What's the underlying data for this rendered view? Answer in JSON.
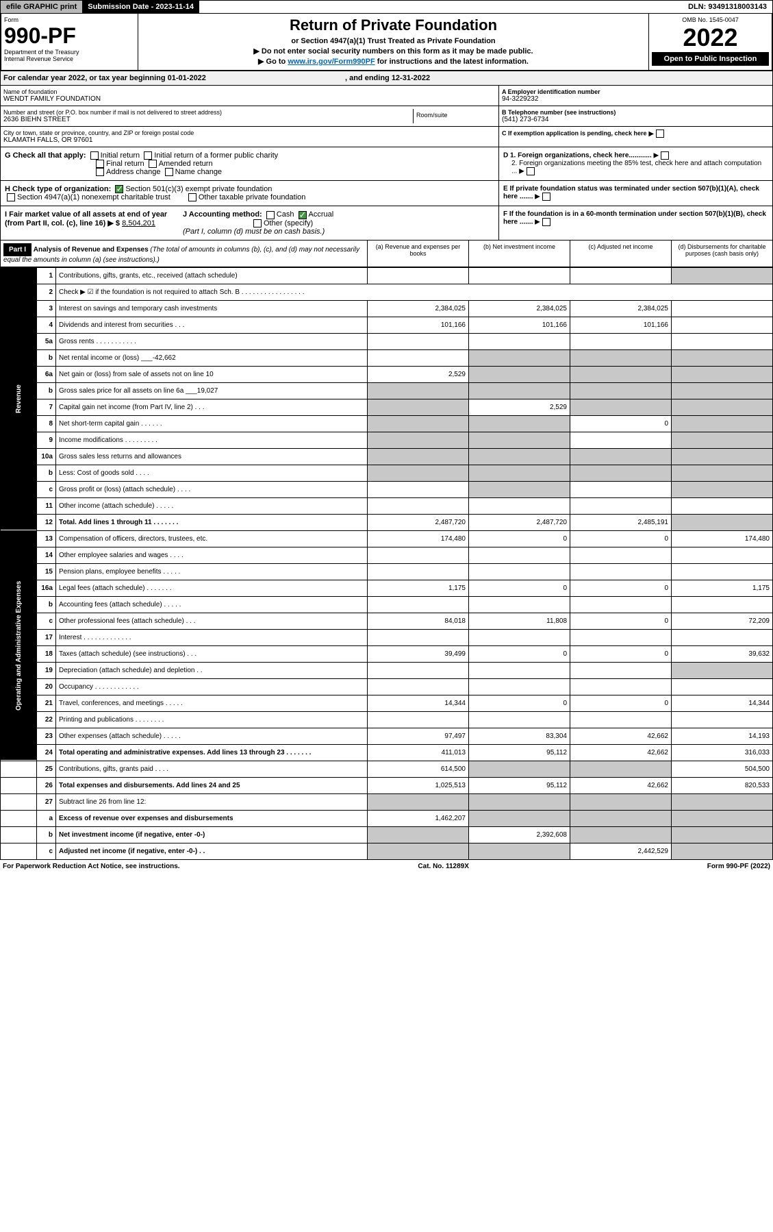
{
  "topbar": {
    "efile": "efile GRAPHIC print",
    "sub_date": "Submission Date - 2023-11-14",
    "dln": "DLN: 93491318003143"
  },
  "header": {
    "form_label": "Form",
    "form_num": "990-PF",
    "dept": "Department of the Treasury",
    "irs": "Internal Revenue Service",
    "title": "Return of Private Foundation",
    "subtitle": "or Section 4947(a)(1) Trust Treated as Private Foundation",
    "note1": "▶ Do not enter social security numbers on this form as it may be made public.",
    "note2_pre": "▶ Go to ",
    "note2_link": "www.irs.gov/Form990PF",
    "note2_post": " for instructions and the latest information.",
    "omb": "OMB No. 1545-0047",
    "year": "2022",
    "open_pub": "Open to Public Inspection"
  },
  "cal_year": "For calendar year 2022, or tax year beginning 01-01-2022",
  "cal_year_end": ", and ending 12-31-2022",
  "info": {
    "name_lbl": "Name of foundation",
    "name": "WENDT FAMILY FOUNDATION",
    "addr_lbl": "Number and street (or P.O. box number if mail is not delivered to street address)",
    "addr": "2636 BIEHN STREET",
    "room_lbl": "Room/suite",
    "city_lbl": "City or town, state or province, country, and ZIP or foreign postal code",
    "city": "KLAMATH FALLS, OR  97601",
    "ein_lbl": "A Employer identification number",
    "ein": "94-3229232",
    "tel_lbl": "B Telephone number (see instructions)",
    "tel": "(541) 273-6734",
    "c_lbl": "C If exemption application is pending, check here",
    "d1_lbl": "D 1. Foreign organizations, check here............",
    "d2_lbl": "2. Foreign organizations meeting the 85% test, check here and attach computation ...",
    "e_lbl": "E  If private foundation status was terminated under section 507(b)(1)(A), check here .......",
    "f_lbl": "F  If the foundation is in a 60-month termination under section 507(b)(1)(B), check here .......",
    "g_lbl": "G Check all that apply:",
    "g_opts": [
      "Initial return",
      "Initial return of a former public charity",
      "Final return",
      "Amended return",
      "Address change",
      "Name change"
    ],
    "h_lbl": "H Check type of organization:",
    "h_501c3": "Section 501(c)(3) exempt private foundation",
    "h_4947": "Section 4947(a)(1) nonexempt charitable trust",
    "h_other": "Other taxable private foundation",
    "i_lbl": "I Fair market value of all assets at end of year (from Part II, col. (c), line 16) ▶ $",
    "i_val": "8,504,201",
    "j_lbl": "J Accounting method:",
    "j_cash": "Cash",
    "j_accrual": "Accrual",
    "j_other": "Other (specify)",
    "j_note": "(Part I, column (d) must be on cash basis.)"
  },
  "part1": {
    "hdr": "Part I",
    "title": "Analysis of Revenue and Expenses",
    "title_note": "(The total of amounts in columns (b), (c), and (d) may not necessarily equal the amounts in column (a) (see instructions).)",
    "col_a": "(a) Revenue and expenses per books",
    "col_b": "(b) Net investment income",
    "col_c": "(c) Adjusted net income",
    "col_d": "(d) Disbursements for charitable purposes (cash basis only)"
  },
  "side_labels": {
    "rev": "Revenue",
    "exp": "Operating and Administrative Expenses"
  },
  "rows": [
    {
      "ln": "1",
      "desc": "Contributions, gifts, grants, etc., received (attach schedule)",
      "a": "",
      "b": "",
      "c": "",
      "d": "",
      "d_gray": true
    },
    {
      "ln": "2",
      "desc": "Check ▶ ☑ if the foundation is not required to attach Sch. B  . . . . . . . . . . . . . . . . .",
      "a": "",
      "b": "",
      "c": "",
      "d": "",
      "merge": true
    },
    {
      "ln": "3",
      "desc": "Interest on savings and temporary cash investments",
      "a": "2,384,025",
      "b": "2,384,025",
      "c": "2,384,025",
      "d": ""
    },
    {
      "ln": "4",
      "desc": "Dividends and interest from securities  .  .  .",
      "a": "101,166",
      "b": "101,166",
      "c": "101,166",
      "d": ""
    },
    {
      "ln": "5a",
      "desc": "Gross rents  .  .  .  .  .  .  .  .  .  .  .",
      "a": "",
      "b": "",
      "c": "",
      "d": ""
    },
    {
      "ln": "b",
      "desc": "Net rental income or (loss)",
      "inline": "-42,662",
      "a": "",
      "b": "",
      "c": "",
      "d": "",
      "b_gray": true,
      "c_gray": true,
      "d_gray": true
    },
    {
      "ln": "6a",
      "desc": "Net gain or (loss) from sale of assets not on line 10",
      "a": "2,529",
      "b": "",
      "c": "",
      "d": "",
      "b_gray": true,
      "c_gray": true,
      "d_gray": true
    },
    {
      "ln": "b",
      "desc": "Gross sales price for all assets on line 6a",
      "inline": "19,027",
      "a": "",
      "b": "",
      "c": "",
      "d": "",
      "a_gray": true,
      "b_gray": true,
      "c_gray": true,
      "d_gray": true
    },
    {
      "ln": "7",
      "desc": "Capital gain net income (from Part IV, line 2)  .  .  .",
      "a": "",
      "b": "2,529",
      "c": "",
      "d": "",
      "a_gray": true,
      "c_gray": true,
      "d_gray": true
    },
    {
      "ln": "8",
      "desc": "Net short-term capital gain  .  .  .  .  .  .",
      "a": "",
      "b": "",
      "c": "0",
      "d": "",
      "a_gray": true,
      "b_gray": true,
      "d_gray": true
    },
    {
      "ln": "9",
      "desc": "Income modifications  .  .  .  .  .  .  .  .  .",
      "a": "",
      "b": "",
      "c": "",
      "d": "",
      "a_gray": true,
      "b_gray": true,
      "d_gray": true
    },
    {
      "ln": "10a",
      "desc": "Gross sales less returns and allowances",
      "inline_box": true,
      "a": "",
      "b": "",
      "c": "",
      "d": "",
      "a_gray": true,
      "b_gray": true,
      "c_gray": true,
      "d_gray": true
    },
    {
      "ln": "b",
      "desc": "Less: Cost of goods sold  .  .  .  .",
      "inline_box": true,
      "a": "",
      "b": "",
      "c": "",
      "d": "",
      "a_gray": true,
      "b_gray": true,
      "c_gray": true,
      "d_gray": true
    },
    {
      "ln": "c",
      "desc": "Gross profit or (loss) (attach schedule)  .  .  .  .",
      "a": "",
      "b": "",
      "c": "",
      "d": "",
      "b_gray": true,
      "d_gray": true
    },
    {
      "ln": "11",
      "desc": "Other income (attach schedule)  .  .  .  .  .",
      "a": "",
      "b": "",
      "c": "",
      "d": ""
    },
    {
      "ln": "12",
      "desc": "Total. Add lines 1 through 11  .  .  .  .  .  .  .",
      "bold": true,
      "a": "2,487,720",
      "b": "2,487,720",
      "c": "2,485,191",
      "d": "",
      "d_gray": true
    },
    {
      "ln": "13",
      "desc": "Compensation of officers, directors, trustees, etc.",
      "a": "174,480",
      "b": "0",
      "c": "0",
      "d": "174,480"
    },
    {
      "ln": "14",
      "desc": "Other employee salaries and wages  .  .  .  .",
      "a": "",
      "b": "",
      "c": "",
      "d": ""
    },
    {
      "ln": "15",
      "desc": "Pension plans, employee benefits  .  .  .  .  .",
      "a": "",
      "b": "",
      "c": "",
      "d": ""
    },
    {
      "ln": "16a",
      "desc": "Legal fees (attach schedule)  .  .  .  .  .  .  .",
      "a": "1,175",
      "b": "0",
      "c": "0",
      "d": "1,175"
    },
    {
      "ln": "b",
      "desc": "Accounting fees (attach schedule)  .  .  .  .  .",
      "a": "",
      "b": "",
      "c": "",
      "d": ""
    },
    {
      "ln": "c",
      "desc": "Other professional fees (attach schedule)  .  .  .",
      "a": "84,018",
      "b": "11,808",
      "c": "0",
      "d": "72,209"
    },
    {
      "ln": "17",
      "desc": "Interest  .  .  .  .  .  .  .  .  .  .  .  .  .",
      "a": "",
      "b": "",
      "c": "",
      "d": ""
    },
    {
      "ln": "18",
      "desc": "Taxes (attach schedule) (see instructions)  .  .  .",
      "a": "39,499",
      "b": "0",
      "c": "0",
      "d": "39,632"
    },
    {
      "ln": "19",
      "desc": "Depreciation (attach schedule) and depletion  .  .",
      "a": "",
      "b": "",
      "c": "",
      "d": "",
      "d_gray": true
    },
    {
      "ln": "20",
      "desc": "Occupancy  .  .  .  .  .  .  .  .  .  .  .  .",
      "a": "",
      "b": "",
      "c": "",
      "d": ""
    },
    {
      "ln": "21",
      "desc": "Travel, conferences, and meetings  .  .  .  .  .",
      "a": "14,344",
      "b": "0",
      "c": "0",
      "d": "14,344"
    },
    {
      "ln": "22",
      "desc": "Printing and publications  .  .  .  .  .  .  .  .",
      "a": "",
      "b": "",
      "c": "",
      "d": ""
    },
    {
      "ln": "23",
      "desc": "Other expenses (attach schedule)  .  .  .  .  .",
      "a": "97,497",
      "b": "83,304",
      "c": "42,662",
      "d": "14,193"
    },
    {
      "ln": "24",
      "desc": "Total operating and administrative expenses. Add lines 13 through 23  .  .  .  .  .  .  .",
      "bold": true,
      "a": "411,013",
      "b": "95,112",
      "c": "42,662",
      "d": "316,033"
    },
    {
      "ln": "25",
      "desc": "Contributions, gifts, grants paid  .  .  .  .",
      "a": "614,500",
      "b": "",
      "c": "",
      "d": "504,500",
      "b_gray": true,
      "c_gray": true
    },
    {
      "ln": "26",
      "desc": "Total expenses and disbursements. Add lines 24 and 25",
      "bold": true,
      "a": "1,025,513",
      "b": "95,112",
      "c": "42,662",
      "d": "820,533"
    },
    {
      "ln": "27",
      "desc": "Subtract line 26 from line 12:",
      "a": "",
      "b": "",
      "c": "",
      "d": "",
      "a_gray": true,
      "b_gray": true,
      "c_gray": true,
      "d_gray": true
    },
    {
      "ln": "a",
      "desc": "Excess of revenue over expenses and disbursements",
      "bold": true,
      "a": "1,462,207",
      "b": "",
      "c": "",
      "d": "",
      "b_gray": true,
      "c_gray": true,
      "d_gray": true
    },
    {
      "ln": "b",
      "desc": "Net investment income (if negative, enter -0-)",
      "bold": true,
      "a": "",
      "b": "2,392,608",
      "c": "",
      "d": "",
      "a_gray": true,
      "c_gray": true,
      "d_gray": true
    },
    {
      "ln": "c",
      "desc": "Adjusted net income (if negative, enter -0-)  .  .",
      "bold": true,
      "a": "",
      "b": "",
      "c": "2,442,529",
      "d": "",
      "a_gray": true,
      "b_gray": true,
      "d_gray": true
    }
  ],
  "footer": {
    "left": "For Paperwork Reduction Act Notice, see instructions.",
    "mid": "Cat. No. 11289X",
    "right": "Form 990-PF (2022)"
  }
}
